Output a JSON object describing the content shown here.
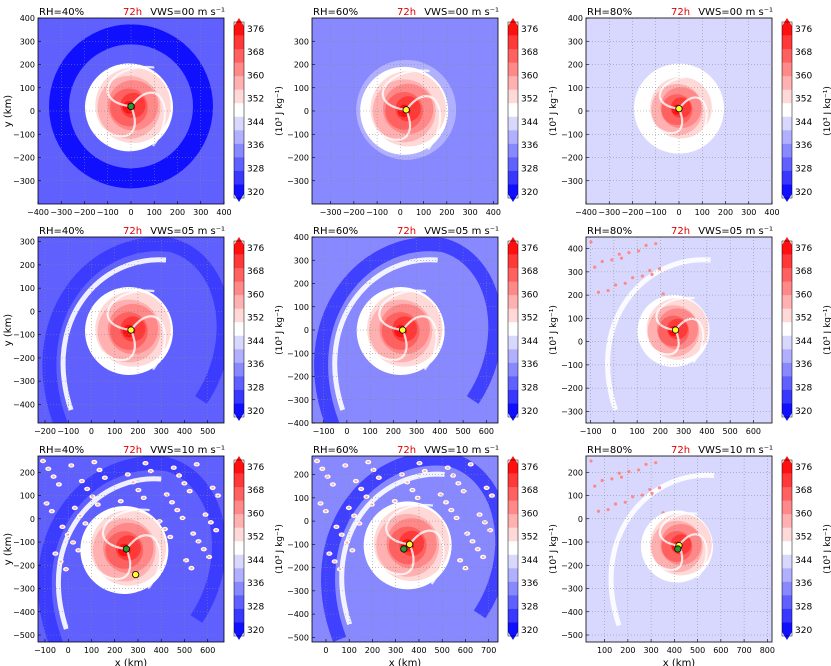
{
  "colorbar": {
    "ticks": [
      "376",
      "368",
      "360",
      "352",
      "344",
      "336",
      "328",
      "320"
    ],
    "label": "(10³ J kg⁻¹)",
    "levels": [
      "#ff1010",
      "#ff3838",
      "#ff6060",
      "#ff8888",
      "#ffb0b0",
      "#ffd8d8",
      "#ffffff",
      "#d8d8ff",
      "#b0b0ff",
      "#8888ff",
      "#6060ff",
      "#3838ff",
      "#1010ff"
    ]
  },
  "axes": {
    "xlabel": "x (km)",
    "ylabel": "y (km)"
  },
  "chart_data": [
    {
      "type": "heatmap",
      "rh": "RH=40%",
      "time": "72h",
      "vws": "VWS=00 m s⁻¹",
      "xticks": [
        "−400",
        "−300",
        "−200",
        "−100",
        "0",
        "100",
        "200",
        "300",
        "400"
      ],
      "yticks": [
        "400",
        "300",
        "200",
        "100",
        "0",
        "−100",
        "−200",
        "−300"
      ],
      "xlim": [
        -400,
        400
      ],
      "ylim": [
        -400,
        400
      ],
      "centers": [
        {
          "x": 0,
          "y": 20,
          "color": "#ffff30"
        },
        {
          "x": 0,
          "y": 20,
          "color": "#2a9a2a"
        }
      ]
    },
    {
      "type": "heatmap",
      "rh": "RH=60%",
      "time": "72h",
      "vws": "VWS=00 m s⁻¹",
      "xticks": [
        "−300",
        "−200",
        "−100",
        "0",
        "100",
        "200",
        "300",
        "400"
      ],
      "yticks": [
        "300",
        "200",
        "100",
        "0",
        "−100",
        "−200",
        "−300"
      ],
      "xlim": [
        -380,
        420
      ],
      "ylim": [
        -400,
        400
      ],
      "centers": [
        {
          "x": 25,
          "y": 5,
          "color": "#ffff30"
        }
      ]
    },
    {
      "type": "heatmap",
      "rh": "RH=80%",
      "time": "72h",
      "vws": "VWS=00 m s⁻¹",
      "xticks": [
        "−400",
        "−300",
        "−200",
        "−100",
        "0",
        "100",
        "200",
        "300",
        "400"
      ],
      "yticks": [
        "400",
        "300",
        "200",
        "100",
        "0",
        "−100",
        "−200",
        "−300"
      ],
      "xlim": [
        -400,
        400
      ],
      "ylim": [
        -400,
        400
      ],
      "centers": [
        {
          "x": 0,
          "y": 10,
          "color": "#ffff30"
        }
      ]
    },
    {
      "type": "heatmap",
      "rh": "RH=40%",
      "time": "72h",
      "vws": "VWS=05 m s⁻¹",
      "xticks": [
        "−200",
        "−100",
        "0",
        "100",
        "200",
        "300",
        "400",
        "500"
      ],
      "yticks": [
        "300",
        "200",
        "100",
        "0",
        "−100",
        "−200",
        "−300",
        "−400"
      ],
      "xlim": [
        -230,
        570
      ],
      "ylim": [
        -480,
        320
      ],
      "centers": [
        {
          "x": 170,
          "y": -80,
          "color": "#ffff30"
        }
      ]
    },
    {
      "type": "heatmap",
      "rh": "RH=60%",
      "time": "72h",
      "vws": "VWS=05 m s⁻¹",
      "xticks": [
        "−100",
        "0",
        "100",
        "200",
        "300",
        "400",
        "500",
        "600"
      ],
      "yticks": [
        "400",
        "300",
        "200",
        "100",
        "0",
        "−100",
        "−200",
        "−300",
        "−400"
      ],
      "xlim": [
        -150,
        650
      ],
      "ylim": [
        -400,
        400
      ],
      "centers": [
        {
          "x": 240,
          "y": 0,
          "color": "#ffff30"
        }
      ]
    },
    {
      "type": "heatmap",
      "rh": "RH=80%",
      "time": "72h",
      "vws": "VWS=05 m s⁻¹",
      "xticks": [
        "−100",
        "0",
        "100",
        "200",
        "300",
        "400",
        "500",
        "600"
      ],
      "yticks": [
        "400",
        "300",
        "200",
        "100",
        "0",
        "−100",
        "−200",
        "−300"
      ],
      "xlim": [
        -120,
        680
      ],
      "ylim": [
        -350,
        450
      ],
      "centers": [
        {
          "x": 265,
          "y": 50,
          "color": "#ffff30"
        }
      ]
    },
    {
      "type": "heatmap",
      "rh": "RH=40%",
      "time": "72h",
      "vws": "VWS=10 m s⁻¹",
      "xticks": [
        "−100",
        "0",
        "100",
        "200",
        "300",
        "400",
        "500",
        "600"
      ],
      "yticks": [
        "200",
        "100",
        "0",
        "−100",
        "−200",
        "−300",
        "−400",
        "−500"
      ],
      "xlim": [
        -130,
        670
      ],
      "ylim": [
        -530,
        270
      ],
      "centers": [
        {
          "x": 250,
          "y": -130,
          "color": "#2a9a2a"
        },
        {
          "x": 290,
          "y": -240,
          "color": "#ffff30"
        }
      ]
    },
    {
      "type": "heatmap",
      "rh": "RH=60%",
      "time": "72h",
      "vws": "VWS=10 m s⁻¹",
      "xticks": [
        "0",
        "100",
        "200",
        "300",
        "400",
        "500",
        "600",
        "700"
      ],
      "yticks": [
        "200",
        "100",
        "0",
        "−100",
        "−200",
        "−300",
        "−400",
        "−500"
      ],
      "xlim": [
        -60,
        740
      ],
      "ylim": [
        -520,
        280
      ],
      "centers": [
        {
          "x": 360,
          "y": -100,
          "color": "#ffff30"
        },
        {
          "x": 335,
          "y": -120,
          "color": "#2a9a2a"
        }
      ]
    },
    {
      "type": "heatmap",
      "rh": "RH=80%",
      "time": "72h",
      "vws": "VWS=10 m s⁻¹",
      "xticks": [
        "100",
        "200",
        "300",
        "400",
        "500",
        "600",
        "700",
        "800"
      ],
      "yticks": [
        "200",
        "100",
        "0",
        "−100",
        "−200",
        "−300",
        "−400",
        "−500"
      ],
      "xlim": [
        20,
        820
      ],
      "ylim": [
        -530,
        270
      ],
      "centers": [
        {
          "x": 420,
          "y": -115,
          "color": "#ffff30"
        },
        {
          "x": 415,
          "y": -130,
          "color": "#2a9a2a"
        }
      ]
    }
  ]
}
